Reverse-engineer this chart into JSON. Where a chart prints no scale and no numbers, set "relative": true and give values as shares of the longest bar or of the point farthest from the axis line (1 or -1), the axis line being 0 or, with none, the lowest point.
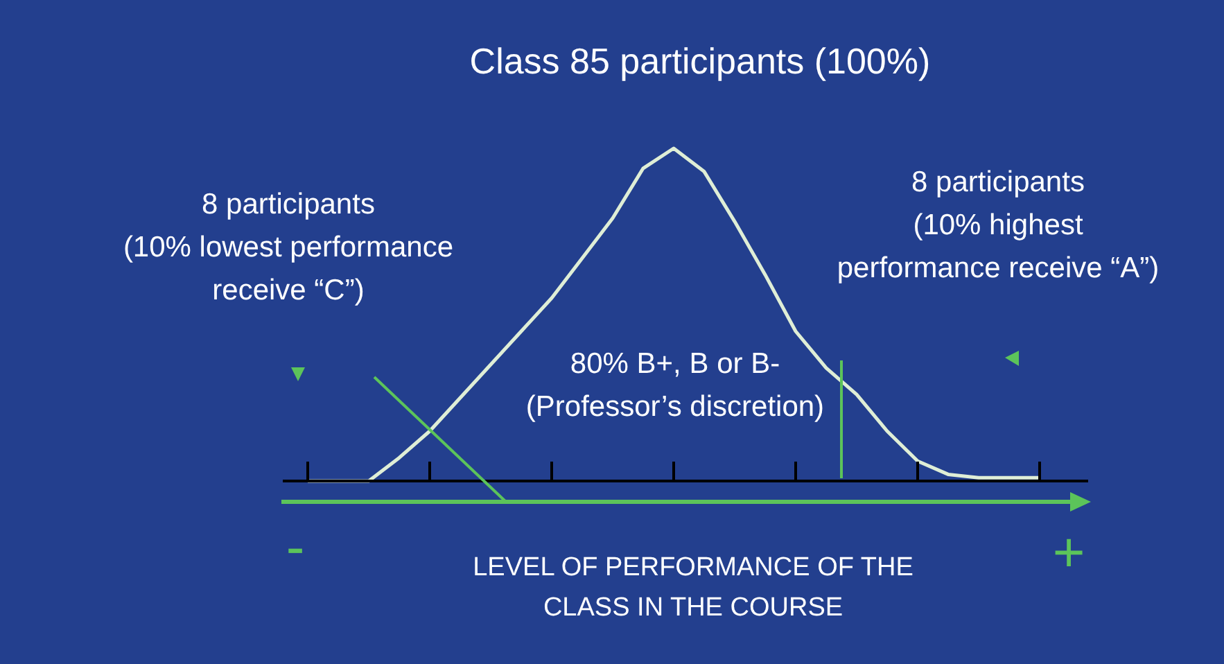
{
  "chart_data": {
    "type": "line",
    "relative": true,
    "title": "Class 85 participants (100%)",
    "xlabel": "LEVEL OF PERFORMANCE OF THE\nCLASS IN THE COURSE",
    "categories": [
      null,
      null,
      null,
      null,
      null,
      null,
      null,
      null,
      null,
      null,
      null,
      null,
      null,
      null,
      null,
      null,
      null,
      null,
      null,
      null,
      null,
      null,
      null,
      null,
      null
    ],
    "series": [
      {
        "color": "#dfeed6",
        "values": [
          0,
          0,
          0,
          0.07,
          0.15,
          0.25,
          0.35,
          0.45,
          0.55,
          0.67,
          0.79,
          0.94,
          1,
          0.93,
          0.78,
          0.62,
          0.45,
          0.34,
          0.26,
          0.15,
          0.06,
          0.02,
          0.01,
          0.01,
          0.01
        ]
      }
    ],
    "grid": false,
    "marker": "none",
    "line_style": "solid",
    "annotations": [
      "8 participants\n(10% lowest performance\nreceive “C”)",
      "8 participants\n(10% highest\nperformance receive “A”)",
      "80% B+, B or B-\n(Professor’s discretion)",
      "-",
      "+"
    ]
  }
}
